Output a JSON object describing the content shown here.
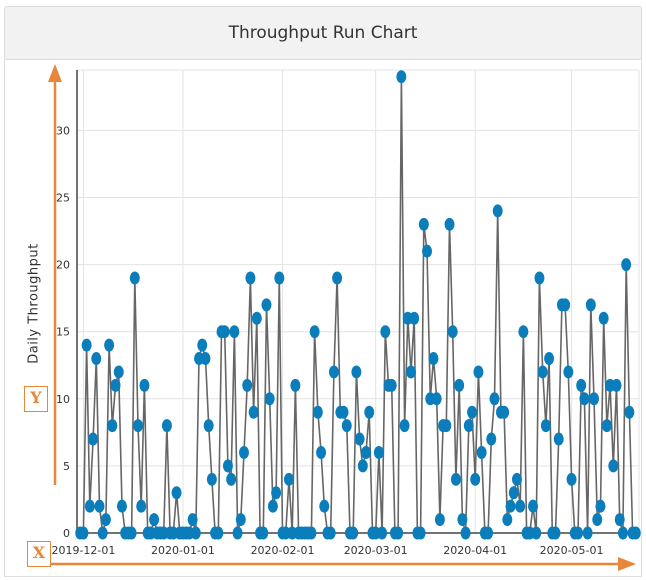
{
  "title": "Throughput Run Chart",
  "annotations": {
    "y_marker": "Y",
    "x_marker": "X",
    "arrow_color": "#e8873a"
  },
  "chart_data": {
    "type": "line",
    "title": "Throughput Run Chart",
    "xlabel": "",
    "ylabel": "Daily Throughput",
    "xlim": [
      "2019-11-29",
      "2020-05-22"
    ],
    "ylim": [
      0,
      34.5
    ],
    "yticks": [
      0,
      5,
      10,
      15,
      20,
      25,
      30
    ],
    "xticks": [
      "2019-12-01",
      "2020-01-01",
      "2020-02-01",
      "2020-03-01",
      "2020-04-01",
      "2020-05-01"
    ],
    "grid": true,
    "line_color": "#666666",
    "marker_color": "#0b7dbb",
    "points": [
      [
        "2019-11-30",
        0
      ],
      [
        "2019-12-01",
        0
      ],
      [
        "2019-12-02",
        14
      ],
      [
        "2019-12-03",
        2
      ],
      [
        "2019-12-04",
        7
      ],
      [
        "2019-12-05",
        13
      ],
      [
        "2019-12-06",
        2
      ],
      [
        "2019-12-07",
        0
      ],
      [
        "2019-12-08",
        1
      ],
      [
        "2019-12-09",
        14
      ],
      [
        "2019-12-10",
        8
      ],
      [
        "2019-12-11",
        11
      ],
      [
        "2019-12-12",
        12
      ],
      [
        "2019-12-13",
        2
      ],
      [
        "2019-12-14",
        0
      ],
      [
        "2019-12-15",
        0
      ],
      [
        "2019-12-16",
        0
      ],
      [
        "2019-12-17",
        19
      ],
      [
        "2019-12-18",
        8
      ],
      [
        "2019-12-19",
        2
      ],
      [
        "2019-12-20",
        11
      ],
      [
        "2019-12-21",
        0
      ],
      [
        "2019-12-22",
        0
      ],
      [
        "2019-12-23",
        1
      ],
      [
        "2019-12-24",
        0
      ],
      [
        "2019-12-25",
        0
      ],
      [
        "2019-12-26",
        0
      ],
      [
        "2019-12-27",
        8
      ],
      [
        "2019-12-28",
        0
      ],
      [
        "2019-12-29",
        0
      ],
      [
        "2019-12-30",
        3
      ],
      [
        "2019-12-31",
        0
      ],
      [
        "2020-01-01",
        0
      ],
      [
        "2020-01-02",
        0
      ],
      [
        "2020-01-03",
        0
      ],
      [
        "2020-01-04",
        1
      ],
      [
        "2020-01-05",
        0
      ],
      [
        "2020-01-06",
        13
      ],
      [
        "2020-01-07",
        14
      ],
      [
        "2020-01-08",
        13
      ],
      [
        "2020-01-09",
        8
      ],
      [
        "2020-01-10",
        4
      ],
      [
        "2020-01-11",
        0
      ],
      [
        "2020-01-12",
        0
      ],
      [
        "2020-01-13",
        15
      ],
      [
        "2020-01-14",
        15
      ],
      [
        "2020-01-15",
        5
      ],
      [
        "2020-01-16",
        4
      ],
      [
        "2020-01-17",
        15
      ],
      [
        "2020-01-18",
        0
      ],
      [
        "2020-01-19",
        1
      ],
      [
        "2020-01-20",
        6
      ],
      [
        "2020-01-21",
        11
      ],
      [
        "2020-01-22",
        19
      ],
      [
        "2020-01-23",
        9
      ],
      [
        "2020-01-24",
        16
      ],
      [
        "2020-01-25",
        0
      ],
      [
        "2020-01-26",
        0
      ],
      [
        "2020-01-27",
        17
      ],
      [
        "2020-01-28",
        10
      ],
      [
        "2020-01-29",
        2
      ],
      [
        "2020-01-30",
        3
      ],
      [
        "2020-01-31",
        19
      ],
      [
        "2020-02-01",
        0
      ],
      [
        "2020-02-02",
        0
      ],
      [
        "2020-02-03",
        4
      ],
      [
        "2020-02-04",
        0
      ],
      [
        "2020-02-05",
        11
      ],
      [
        "2020-02-06",
        0
      ],
      [
        "2020-02-07",
        0
      ],
      [
        "2020-02-08",
        0
      ],
      [
        "2020-02-09",
        0
      ],
      [
        "2020-02-10",
        0
      ],
      [
        "2020-02-11",
        15
      ],
      [
        "2020-02-12",
        9
      ],
      [
        "2020-02-13",
        6
      ],
      [
        "2020-02-14",
        2
      ],
      [
        "2020-02-15",
        0
      ],
      [
        "2020-02-16",
        0
      ],
      [
        "2020-02-17",
        12
      ],
      [
        "2020-02-18",
        19
      ],
      [
        "2020-02-19",
        9
      ],
      [
        "2020-02-20",
        9
      ],
      [
        "2020-02-21",
        8
      ],
      [
        "2020-02-22",
        0
      ],
      [
        "2020-02-23",
        0
      ],
      [
        "2020-02-24",
        12
      ],
      [
        "2020-02-25",
        7
      ],
      [
        "2020-02-26",
        5
      ],
      [
        "2020-02-27",
        6
      ],
      [
        "2020-02-28",
        9
      ],
      [
        "2020-02-29",
        0
      ],
      [
        "2020-03-01",
        0
      ],
      [
        "2020-03-02",
        6
      ],
      [
        "2020-03-03",
        0
      ],
      [
        "2020-03-04",
        15
      ],
      [
        "2020-03-05",
        11
      ],
      [
        "2020-03-06",
        11
      ],
      [
        "2020-03-07",
        0
      ],
      [
        "2020-03-08",
        0
      ],
      [
        "2020-03-09",
        34
      ],
      [
        "2020-03-10",
        8
      ],
      [
        "2020-03-11",
        16
      ],
      [
        "2020-03-12",
        12
      ],
      [
        "2020-03-13",
        16
      ],
      [
        "2020-03-14",
        0
      ],
      [
        "2020-03-15",
        0
      ],
      [
        "2020-03-16",
        23
      ],
      [
        "2020-03-17",
        21
      ],
      [
        "2020-03-18",
        10
      ],
      [
        "2020-03-19",
        13
      ],
      [
        "2020-03-20",
        10
      ],
      [
        "2020-03-21",
        1
      ],
      [
        "2020-03-22",
        8
      ],
      [
        "2020-03-23",
        8
      ],
      [
        "2020-03-24",
        23
      ],
      [
        "2020-03-25",
        15
      ],
      [
        "2020-03-26",
        4
      ],
      [
        "2020-03-27",
        11
      ],
      [
        "2020-03-28",
        1
      ],
      [
        "2020-03-29",
        0
      ],
      [
        "2020-03-30",
        8
      ],
      [
        "2020-03-31",
        9
      ],
      [
        "2020-04-01",
        4
      ],
      [
        "2020-04-02",
        12
      ],
      [
        "2020-04-03",
        6
      ],
      [
        "2020-04-04",
        0
      ],
      [
        "2020-04-05",
        0
      ],
      [
        "2020-04-06",
        7
      ],
      [
        "2020-04-07",
        10
      ],
      [
        "2020-04-08",
        24
      ],
      [
        "2020-04-09",
        9
      ],
      [
        "2020-04-10",
        9
      ],
      [
        "2020-04-11",
        1
      ],
      [
        "2020-04-12",
        2
      ],
      [
        "2020-04-13",
        3
      ],
      [
        "2020-04-14",
        4
      ],
      [
        "2020-04-15",
        2
      ],
      [
        "2020-04-16",
        15
      ],
      [
        "2020-04-17",
        0
      ],
      [
        "2020-04-18",
        0
      ],
      [
        "2020-04-19",
        2
      ],
      [
        "2020-04-20",
        0
      ],
      [
        "2020-04-21",
        19
      ],
      [
        "2020-04-22",
        12
      ],
      [
        "2020-04-23",
        8
      ],
      [
        "2020-04-24",
        13
      ],
      [
        "2020-04-25",
        0
      ],
      [
        "2020-04-26",
        0
      ],
      [
        "2020-04-27",
        7
      ],
      [
        "2020-04-28",
        17
      ],
      [
        "2020-04-29",
        17
      ],
      [
        "2020-04-30",
        12
      ],
      [
        "2020-05-01",
        4
      ],
      [
        "2020-05-02",
        0
      ],
      [
        "2020-05-03",
        0
      ],
      [
        "2020-05-04",
        11
      ],
      [
        "2020-05-05",
        10
      ],
      [
        "2020-05-06",
        0
      ],
      [
        "2020-05-07",
        17
      ],
      [
        "2020-05-08",
        10
      ],
      [
        "2020-05-09",
        1
      ],
      [
        "2020-05-10",
        2
      ],
      [
        "2020-05-11",
        16
      ],
      [
        "2020-05-12",
        8
      ],
      [
        "2020-05-13",
        11
      ],
      [
        "2020-05-14",
        5
      ],
      [
        "2020-05-15",
        11
      ],
      [
        "2020-05-16",
        1
      ],
      [
        "2020-05-17",
        0
      ],
      [
        "2020-05-18",
        20
      ],
      [
        "2020-05-19",
        9
      ],
      [
        "2020-05-20",
        0
      ],
      [
        "2020-05-21",
        0
      ]
    ]
  }
}
